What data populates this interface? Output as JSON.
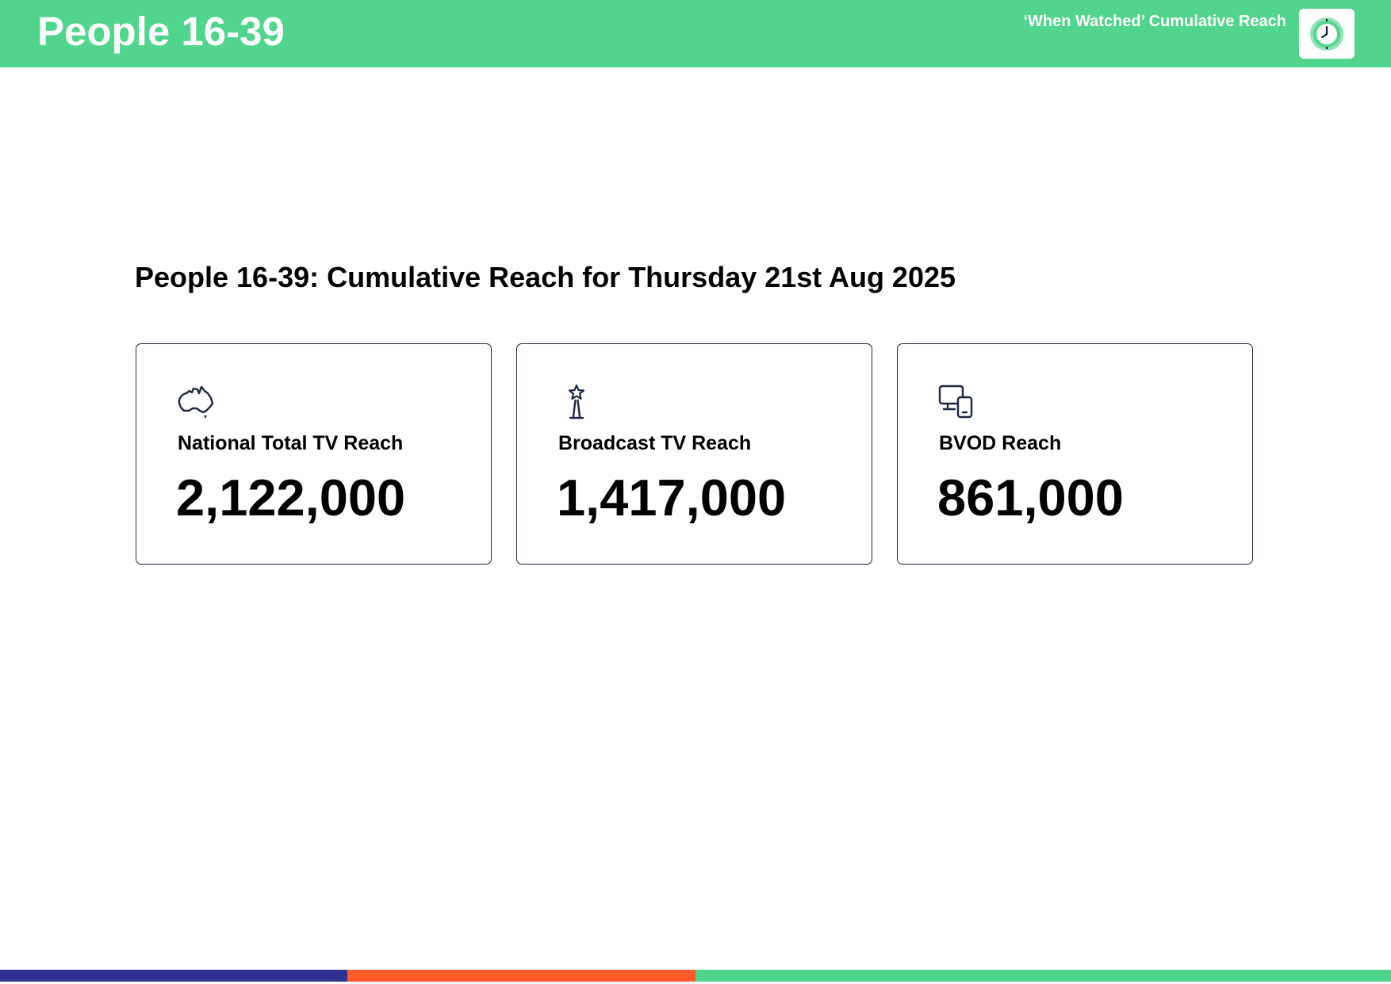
{
  "header": {
    "title": "People 16-39",
    "subtitle": "‘When Watched’ Cumulative Reach",
    "logo_icon": "clock-icon",
    "background_color": "#51d48b"
  },
  "main": {
    "heading": "People 16-39: Cumulative Reach for Thursday 21st Aug 2025",
    "cards": [
      {
        "icon": "australia-map-icon",
        "label": "National Total TV Reach",
        "value": "2,122,000"
      },
      {
        "icon": "broadcast-tower-icon",
        "label": "Broadcast TV Reach",
        "value": "1,417,000"
      },
      {
        "icon": "devices-icon",
        "label": "BVOD Reach",
        "value": "861,000"
      }
    ]
  },
  "footer": {
    "stripe_colors": [
      "#2e3192",
      "#ff5a2c",
      "#51d48b"
    ]
  }
}
